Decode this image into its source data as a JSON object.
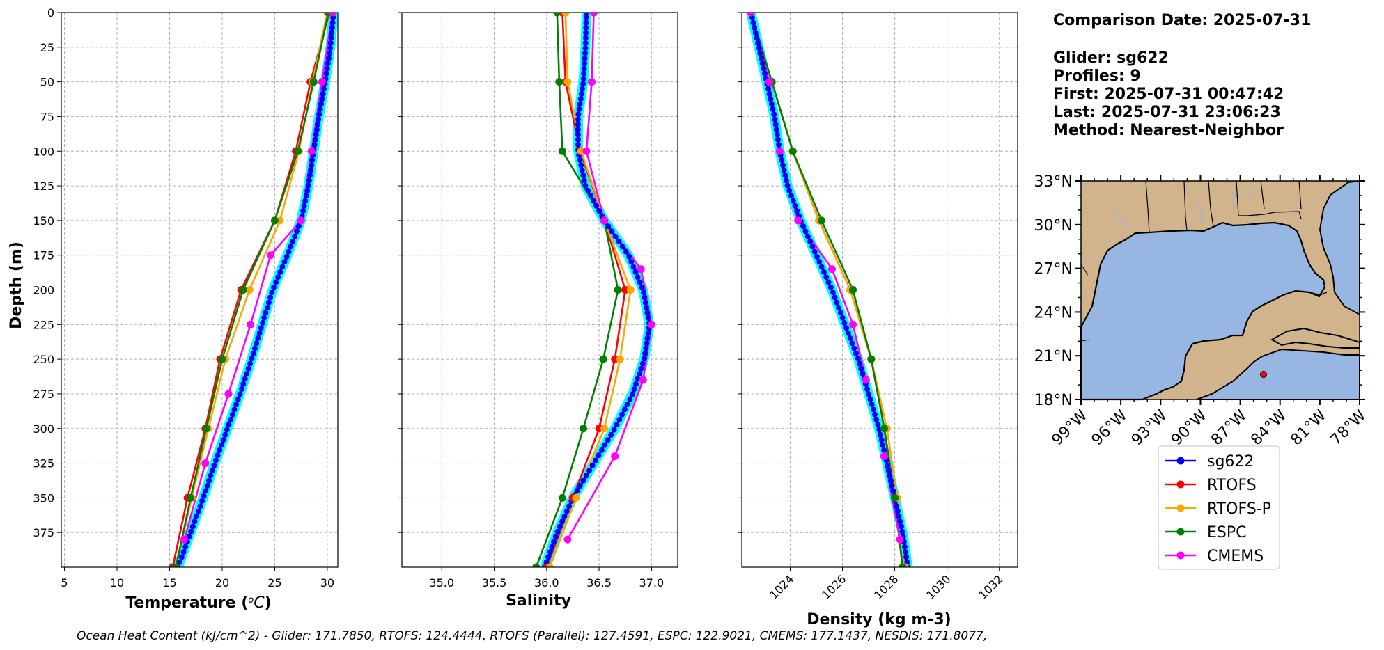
{
  "info": {
    "comparison_date": "Comparison Date: 2025-07-31",
    "glider": "Glider: sg622",
    "profiles": "Profiles: 9",
    "first": "First: 2025-07-31 00:47:42",
    "last": "Last: 2025-07-31 23:06:23",
    "method": "Method: Nearest-Neighbor"
  },
  "footer": "Ocean Heat Content (kJ/cm^2) - Glider: 171.7850,  RTOFS: 124.4444,  RTOFS (Parallel): 127.4591,  ESPC: 122.9021,  CMEMS: 177.1437,  NESDIS: 171.8077,",
  "colors": {
    "sg622": "#0000ff",
    "sg622_band": "#00ffff",
    "RTOFS": "#ff0000",
    "RTOFS-P": "#ffa500",
    "ESPC": "#008000",
    "CMEMS": "#ff00ff",
    "land": "#d2b48c",
    "ocean": "#98b6e2"
  },
  "legend": [
    "sg622",
    "RTOFS",
    "RTOFS-P",
    "ESPC",
    "CMEMS"
  ],
  "map": {
    "lat_ticks": [
      "33°N",
      "30°N",
      "27°N",
      "24°N",
      "21°N",
      "18°N"
    ],
    "lon_ticks": [
      "99°W",
      "96°W",
      "93°W",
      "90°W",
      "87°W",
      "84°W",
      "81°W",
      "78°W"
    ],
    "extent": {
      "lon": [
        -99,
        -78
      ],
      "lat": [
        18,
        33
      ]
    },
    "glider_position": {
      "lon": -85.2,
      "lat": 19.9
    }
  },
  "chart_data": [
    {
      "type": "line",
      "id": "temperature",
      "title": "",
      "xlabel": "Temperature (°C)",
      "ylabel": "Depth (m)",
      "xlim": [
        4.7,
        31.0
      ],
      "ylim": [
        400,
        0
      ],
      "xticks": [
        5,
        10,
        15,
        20,
        25,
        30
      ],
      "yticks": [
        0,
        25,
        50,
        75,
        100,
        125,
        150,
        175,
        200,
        225,
        250,
        275,
        300,
        325,
        350,
        375
      ],
      "depth": [
        0,
        50,
        100,
        150,
        200,
        250,
        300,
        350,
        400
      ],
      "series": [
        {
          "name": "sg622",
          "profile": [
            [
              30.6,
              0
            ],
            [
              30.3,
              25
            ],
            [
              29.8,
              50
            ],
            [
              29.2,
              75
            ],
            [
              28.7,
              100
            ],
            [
              28.2,
              125
            ],
            [
              27.5,
              150
            ],
            [
              26.2,
              175
            ],
            [
              24.8,
              200
            ],
            [
              23.8,
              225
            ],
            [
              22.8,
              250
            ],
            [
              21.7,
              275
            ],
            [
              20.5,
              300
            ],
            [
              19.3,
              325
            ],
            [
              18.2,
              350
            ],
            [
              17.0,
              375
            ],
            [
              15.8,
              400
            ]
          ]
        },
        {
          "name": "RTOFS",
          "values": [
            30.2,
            28.4,
            27.0,
            25.0,
            21.8,
            19.8,
            18.4,
            16.7,
            15.3
          ]
        },
        {
          "name": "RTOFS-P",
          "values": [
            30.0,
            28.6,
            27.3,
            25.5,
            22.6,
            20.3,
            18.7,
            17.1,
            15.6
          ]
        },
        {
          "name": "ESPC",
          "values": [
            30.1,
            28.7,
            27.2,
            25.0,
            22.0,
            20.0,
            18.5,
            17.0,
            15.6
          ]
        },
        {
          "name": "CMEMS",
          "values": [
            30.5,
            29.5,
            28.5,
            27.5,
            24.6,
            22.7,
            20.6,
            18.4,
            16.4
          ],
          "depth": [
            0,
            50,
            100,
            150,
            175,
            225,
            275,
            325,
            380
          ]
        }
      ]
    },
    {
      "type": "line",
      "id": "salinity",
      "title": "",
      "xlabel": "Salinity",
      "ylabel": "",
      "xlim": [
        34.62,
        37.25
      ],
      "ylim": [
        400,
        0
      ],
      "xticks": [
        35.0,
        35.5,
        36.0,
        36.5,
        37.0
      ],
      "yticks": [
        0,
        25,
        50,
        75,
        100,
        125,
        150,
        175,
        200,
        225,
        250,
        275,
        300,
        325,
        350,
        375
      ],
      "series": [
        {
          "name": "sg622",
          "profile": [
            [
              36.38,
              0
            ],
            [
              36.37,
              25
            ],
            [
              36.35,
              50
            ],
            [
              36.3,
              75
            ],
            [
              36.3,
              100
            ],
            [
              36.37,
              125
            ],
            [
              36.55,
              150
            ],
            [
              36.78,
              175
            ],
            [
              36.92,
              200
            ],
            [
              36.98,
              225
            ],
            [
              36.93,
              250
            ],
            [
              36.82,
              275
            ],
            [
              36.65,
              300
            ],
            [
              36.45,
              325
            ],
            [
              36.25,
              350
            ],
            [
              36.1,
              375
            ],
            [
              35.98,
              400
            ]
          ]
        },
        {
          "name": "RTOFS",
          "values": [
            36.15,
            36.18,
            36.32,
            36.55,
            36.75,
            36.65,
            36.5,
            36.25,
            36.0
          ],
          "depth": [
            0,
            50,
            100,
            150,
            200,
            250,
            300,
            350,
            400
          ]
        },
        {
          "name": "RTOFS-P",
          "values": [
            36.18,
            36.2,
            36.33,
            36.55,
            36.8,
            36.7,
            36.55,
            36.28,
            36.03
          ],
          "depth": [
            0,
            50,
            100,
            150,
            200,
            250,
            300,
            350,
            400
          ]
        },
        {
          "name": "ESPC",
          "values": [
            36.1,
            36.12,
            36.15,
            36.55,
            36.68,
            36.54,
            36.35,
            36.15,
            35.9
          ],
          "depth": [
            0,
            50,
            100,
            150,
            200,
            250,
            300,
            350,
            400
          ]
        },
        {
          "name": "CMEMS",
          "values": [
            36.45,
            36.43,
            36.38,
            36.55,
            36.9,
            37.0,
            36.92,
            36.65,
            36.2
          ],
          "depth": [
            0,
            50,
            100,
            150,
            185,
            225,
            265,
            320,
            380
          ]
        }
      ]
    },
    {
      "type": "line",
      "id": "density",
      "title": "",
      "xlabel": "Density (kg m-3)",
      "ylabel": "",
      "xlim": [
        1022.15,
        1032.7
      ],
      "ylim": [
        400,
        0
      ],
      "xticks": [
        1024,
        1026,
        1028,
        1030,
        1032
      ],
      "yticks": [
        0,
        25,
        50,
        75,
        100,
        125,
        150,
        175,
        200,
        225,
        250,
        275,
        300,
        325,
        350,
        375
      ],
      "series": [
        {
          "name": "sg622",
          "profile": [
            [
              1022.5,
              0
            ],
            [
              1022.8,
              25
            ],
            [
              1023.1,
              50
            ],
            [
              1023.4,
              75
            ],
            [
              1023.6,
              100
            ],
            [
              1023.9,
              125
            ],
            [
              1024.4,
              150
            ],
            [
              1025.0,
              175
            ],
            [
              1025.6,
              200
            ],
            [
              1026.1,
              225
            ],
            [
              1026.6,
              250
            ],
            [
              1027.0,
              275
            ],
            [
              1027.4,
              300
            ],
            [
              1027.7,
              325
            ],
            [
              1028.0,
              350
            ],
            [
              1028.3,
              375
            ],
            [
              1028.5,
              400
            ]
          ]
        },
        {
          "name": "RTOFS",
          "values": [
            1022.5,
            1023.3,
            1024.1,
            1025.1,
            1026.3,
            1027.1,
            1027.6,
            1028.0,
            1028.3
          ],
          "depth": [
            0,
            50,
            100,
            150,
            200,
            250,
            300,
            350,
            400
          ]
        },
        {
          "name": "RTOFS-P",
          "values": [
            1022.5,
            1023.3,
            1024.1,
            1025.1,
            1026.3,
            1027.1,
            1027.7,
            1028.1,
            1028.4
          ],
          "depth": [
            0,
            50,
            100,
            150,
            200,
            250,
            300,
            350,
            400
          ]
        },
        {
          "name": "ESPC",
          "values": [
            1022.5,
            1023.3,
            1024.1,
            1025.2,
            1026.4,
            1027.1,
            1027.6,
            1028.0,
            1028.3
          ],
          "depth": [
            0,
            50,
            100,
            150,
            200,
            250,
            300,
            350,
            400
          ]
        },
        {
          "name": "CMEMS",
          "values": [
            1022.5,
            1023.2,
            1023.6,
            1024.3,
            1025.6,
            1026.4,
            1026.9,
            1027.6,
            1028.2
          ],
          "depth": [
            0,
            50,
            100,
            150,
            185,
            225,
            265,
            320,
            380
          ]
        }
      ]
    }
  ]
}
